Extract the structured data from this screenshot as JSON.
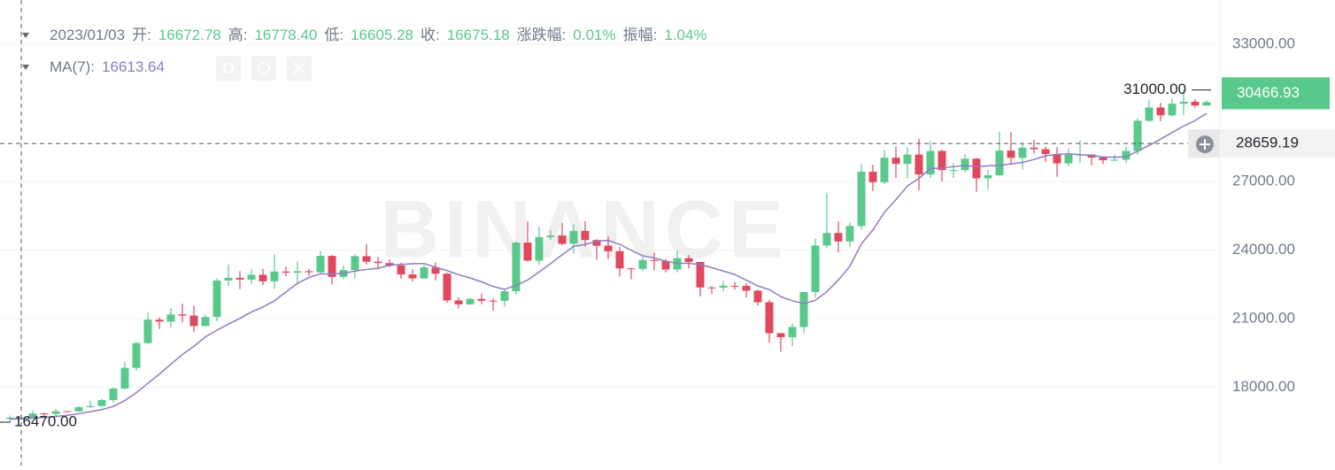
{
  "chart_data": {
    "type": "candlestick",
    "watermark": "BINANCE",
    "header": {
      "date": "2023/01/03",
      "fields": [
        {
          "label": "开:",
          "value": "16672.78"
        },
        {
          "label": "高:",
          "value": "16778.40"
        },
        {
          "label": "低:",
          "value": "16605.28"
        },
        {
          "label": "收:",
          "value": "16675.18"
        },
        {
          "label": "涨跌幅:",
          "value": "0.01%"
        },
        {
          "label": "振幅:",
          "value": "1.04%"
        }
      ]
    },
    "up_color": "#58c98b",
    "down_color": "#e0485e",
    "ylim": [
      14573,
      34935
    ],
    "yticks": [
      {
        "value": 33000,
        "label": "33000.00"
      },
      {
        "value": 27000,
        "label": "27000.00"
      },
      {
        "value": 24000,
        "label": "24000.00"
      },
      {
        "value": 21000,
        "label": "21000.00"
      },
      {
        "value": 18000,
        "label": "18000.00"
      }
    ],
    "grid": true,
    "ohlc": [
      [
        16625,
        16760,
        16470,
        16672.78
      ],
      [
        16672.78,
        16778.4,
        16605.28,
        16675.18
      ],
      [
        16675.18,
        16991,
        16652,
        16850
      ],
      [
        16850,
        16879,
        16753,
        16831
      ],
      [
        16831,
        17041,
        16679,
        16950
      ],
      [
        16950,
        16975,
        16908,
        16943
      ],
      [
        16943,
        17176,
        16911,
        17127
      ],
      [
        17127,
        17398,
        17101,
        17178
      ],
      [
        17178,
        17490,
        17142,
        17440
      ],
      [
        17440,
        17992,
        17320,
        17943
      ],
      [
        17943,
        19117,
        17910,
        18846
      ],
      [
        18846,
        19964,
        18714,
        19930
      ],
      [
        19930,
        21258,
        19888,
        20954
      ],
      [
        20954,
        21050,
        20551,
        20871
      ],
      [
        20871,
        21466,
        20611,
        21185
      ],
      [
        21185,
        21650,
        20834,
        21132
      ],
      [
        21132,
        21564,
        20407,
        20677
      ],
      [
        20677,
        21183,
        20659,
        21071
      ],
      [
        21071,
        22755,
        20880,
        22667
      ],
      [
        22667,
        23372,
        22422,
        22783
      ],
      [
        22783,
        23078,
        22292,
        22707
      ],
      [
        22707,
        23162,
        22512,
        22916
      ],
      [
        22916,
        23180,
        22470,
        22632
      ],
      [
        22632,
        23816,
        22300,
        23060
      ],
      [
        23060,
        23282,
        22850,
        23009
      ],
      [
        23009,
        23500,
        22534,
        23074
      ],
      [
        23074,
        23176,
        22872,
        23027
      ],
      [
        23027,
        23950,
        23000,
        23743
      ],
      [
        23743,
        23783,
        22500,
        22826
      ],
      [
        22826,
        23320,
        22714,
        23125
      ],
      [
        23125,
        23812,
        22760,
        23732
      ],
      [
        23732,
        24255,
        23366,
        23488
      ],
      [
        23488,
        23700,
        23208,
        23431
      ],
      [
        23431,
        23587,
        23253,
        23326
      ],
      [
        23326,
        23444,
        22750,
        22932
      ],
      [
        22932,
        23160,
        22630,
        22762
      ],
      [
        22762,
        23350,
        22745,
        23240
      ],
      [
        23240,
        23452,
        22665,
        22963
      ],
      [
        22963,
        23011,
        21688,
        21796
      ],
      [
        21796,
        21938,
        21451,
        21625
      ],
      [
        21625,
        21906,
        21599,
        21862
      ],
      [
        21862,
        22090,
        21630,
        21783
      ],
      [
        21783,
        21891,
        21351,
        21773
      ],
      [
        21773,
        22322,
        21532,
        22199
      ],
      [
        22199,
        24380,
        22047,
        24324
      ],
      [
        24324,
        25250,
        23505,
        23538
      ],
      [
        23538,
        25021,
        23339,
        24565
      ],
      [
        24565,
        24877,
        24439,
        24631
      ],
      [
        24631,
        25190,
        24192,
        24271
      ],
      [
        24271,
        25121,
        23840,
        24836
      ],
      [
        24836,
        25250,
        24148,
        24439
      ],
      [
        24439,
        24476,
        23574,
        24189
      ],
      [
        24189,
        24599,
        23608,
        23947
      ],
      [
        23947,
        24132,
        22841,
        23198
      ],
      [
        23198,
        23218,
        22722,
        23175
      ],
      [
        23175,
        23689,
        23077,
        23561
      ],
      [
        23561,
        23880,
        23106,
        23522
      ],
      [
        23522,
        23600,
        23020,
        23147
      ],
      [
        23147,
        23980,
        23020,
        23646
      ],
      [
        23646,
        23783,
        23195,
        23476
      ],
      [
        23476,
        23479,
        21971,
        22362
      ],
      [
        22362,
        22420,
        22086,
        22354
      ],
      [
        22354,
        22643,
        22199,
        22436
      ],
      [
        22436,
        22605,
        22265,
        22429
      ],
      [
        22429,
        22554,
        21927,
        22219
      ],
      [
        22219,
        22275,
        21580,
        21718
      ],
      [
        21718,
        21823,
        19950,
        20363
      ],
      [
        20363,
        20368,
        19549,
        20187
      ],
      [
        20187,
        20792,
        19800,
        20633
      ],
      [
        20633,
        22185,
        20366,
        22163
      ],
      [
        22163,
        24500,
        21918,
        24197
      ],
      [
        24197,
        26500,
        24080,
        24746
      ],
      [
        24746,
        25250,
        23900,
        24375
      ],
      [
        24375,
        25210,
        24124,
        25052
      ],
      [
        25052,
        27756,
        24890,
        27423
      ],
      [
        27423,
        27725,
        26578,
        26965
      ],
      [
        26965,
        28390,
        26880,
        28038
      ],
      [
        28038,
        28528,
        27156,
        27767
      ],
      [
        27767,
        28500,
        27124,
        28175
      ],
      [
        28175,
        28868,
        26601,
        27307
      ],
      [
        27307,
        28752,
        27155,
        28333
      ],
      [
        28333,
        28390,
        27000,
        27493
      ],
      [
        27493,
        27800,
        27156,
        27494
      ],
      [
        27494,
        28194,
        27415,
        27994
      ],
      [
        27994,
        28040,
        26550,
        27139
      ],
      [
        27139,
        27500,
        26631,
        27268
      ],
      [
        27268,
        29184,
        27242,
        28348
      ],
      [
        28348,
        29159,
        27720,
        28033
      ],
      [
        28033,
        28659,
        27525,
        28478
      ],
      [
        28478,
        28821,
        28220,
        28411
      ],
      [
        28411,
        28530,
        27860,
        28199
      ],
      [
        28199,
        28494,
        27205,
        27790
      ],
      [
        27790,
        28444,
        27661,
        28168
      ],
      [
        28168,
        28775,
        27800,
        28175
      ],
      [
        28175,
        28190,
        27711,
        28044
      ],
      [
        28044,
        28100,
        27766,
        27925
      ],
      [
        27925,
        28170,
        27883,
        27947
      ],
      [
        27947,
        28530,
        27800,
        28333
      ],
      [
        28333,
        29770,
        28170,
        29653
      ],
      [
        29653,
        30550,
        29607,
        30235
      ],
      [
        30235,
        30440,
        29628,
        29892
      ],
      [
        29892,
        30620,
        29845,
        30399
      ],
      [
        30399,
        31000,
        29900,
        30485
      ],
      [
        30485,
        30600,
        30230,
        30318
      ],
      [
        30318,
        30550,
        30300,
        30466.93
      ]
    ],
    "ma": {
      "name": "MA(7):",
      "color": "#8e7cc3",
      "values": [
        16610,
        16613.64,
        16650,
        16680,
        16720,
        16770,
        16840,
        16930,
        17020,
        17160,
        17420,
        17760,
        18170,
        18570,
        19010,
        19430,
        19790,
        20200,
        20490,
        20760,
        21010,
        21290,
        21510,
        21780,
        22170,
        22540,
        22800,
        22960,
        22950,
        22980,
        23080,
        23150,
        23200,
        23330,
        23370,
        23400,
        23410,
        23250,
        23100,
        22920,
        22780,
        22610,
        22410,
        22280,
        22460,
        22690,
        23040,
        23410,
        23790,
        24160,
        24240,
        24390,
        24420,
        24250,
        23990,
        23750,
        23650,
        23510,
        23420,
        23420,
        23360,
        23230,
        23080,
        22930,
        22680,
        22430,
        22270,
        21960,
        21780,
        21660,
        21800,
        22180,
        22690,
        23290,
        24270,
        24880,
        25650,
        26200,
        26800,
        27130,
        27570,
        27580,
        27650,
        27700,
        27650,
        27680,
        27700,
        27770,
        27830,
        27960,
        28120,
        28180,
        28210,
        28170,
        28140,
        28070,
        28060,
        28080,
        28320,
        28580,
        28850,
        29140,
        29420,
        29660,
        29980
      ]
    },
    "crosshair_price": 28659.19,
    "max_label": {
      "value": 31000,
      "label": "31000.00"
    },
    "min_label": {
      "value": 16470,
      "label": "16470.00"
    }
  }
}
